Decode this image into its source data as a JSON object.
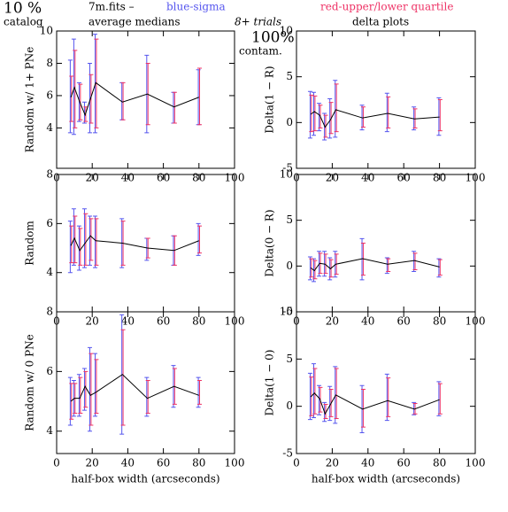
{
  "header": {
    "pct": "10 %",
    "catalog": "catalog",
    "file": "7m.fits  –",
    "sigma_legend": "blue-sigma",
    "sigma_color": "#5555ee",
    "quartile_legend": "red-upper/lower quartile",
    "quartile_color": "#ee3366",
    "medians": "average medians",
    "trials": "8+ trials",
    "contam_pct": "100%",
    "contam": "contam.",
    "delta": "delta plots"
  },
  "chart_data": [
    {
      "type": "line",
      "ylabel": "Random w/ 1+ PNe",
      "x": [
        8,
        10,
        13,
        16,
        19,
        22,
        37,
        51,
        66,
        80
      ],
      "values": [
        5.9,
        6.5,
        5.6,
        4.8,
        5.8,
        6.8,
        5.6,
        6.1,
        5.3,
        5.9
      ],
      "sigma": [
        [
          3.7,
          8.2
        ],
        [
          3.6,
          9.5
        ],
        [
          4.4,
          6.8
        ],
        [
          4.3,
          5.6
        ],
        [
          3.7,
          8.0
        ],
        [
          3.7,
          9.8
        ],
        [
          4.5,
          6.8
        ],
        [
          3.7,
          8.5
        ],
        [
          4.3,
          6.2
        ],
        [
          4.2,
          7.6
        ]
      ],
      "quartile": [
        [
          4.4,
          7.2
        ],
        [
          4.0,
          8.8
        ],
        [
          4.5,
          6.7
        ],
        [
          4.4,
          5.3
        ],
        [
          4.3,
          7.3
        ],
        [
          4.0,
          9.5
        ],
        [
          4.5,
          6.8
        ],
        [
          4.2,
          8.0
        ],
        [
          4.3,
          6.2
        ],
        [
          4.2,
          7.7
        ]
      ],
      "xlim": [
        0,
        100
      ],
      "xticks": [
        0,
        20,
        40,
        60,
        80,
        100
      ],
      "ylim": [
        1.5,
        10
      ],
      "yticks": [
        4,
        6,
        8,
        10
      ],
      "color": "#000000"
    },
    {
      "type": "line",
      "ylabel": "Delta(1 − R)",
      "x": [
        8,
        10,
        13,
        16,
        19,
        22,
        37,
        51,
        66,
        80
      ],
      "values": [
        0.9,
        1.2,
        0.8,
        -0.5,
        0.3,
        1.4,
        0.5,
        1.0,
        0.4,
        0.6
      ],
      "sigma": [
        [
          -1.7,
          3.4
        ],
        [
          -1.4,
          3.3
        ],
        [
          -0.9,
          2.1
        ],
        [
          -1.9,
          1.0
        ],
        [
          -1.7,
          2.6
        ],
        [
          -1.6,
          4.6
        ],
        [
          -0.8,
          1.9
        ],
        [
          -1.0,
          3.2
        ],
        [
          -0.8,
          1.7
        ],
        [
          -1.4,
          2.7
        ]
      ],
      "quartile": [
        [
          -1.0,
          3.0
        ],
        [
          -0.9,
          2.9
        ],
        [
          -0.6,
          1.9
        ],
        [
          -1.6,
          0.8
        ],
        [
          -1.2,
          2.2
        ],
        [
          -1.0,
          4.2
        ],
        [
          -0.5,
          1.7
        ],
        [
          -0.6,
          2.8
        ],
        [
          -0.6,
          1.5
        ],
        [
          -0.9,
          2.5
        ]
      ],
      "xlim": [
        0,
        100
      ],
      "xticks": [
        0,
        20,
        40,
        60,
        80,
        100
      ],
      "ylim": [
        -5,
        10
      ],
      "yticks": [
        -5,
        0,
        5,
        10
      ],
      "color": "#000000"
    },
    {
      "type": "line",
      "ylabel": "Random",
      "x": [
        8,
        10,
        13,
        16,
        19,
        22,
        37,
        51,
        66,
        80
      ],
      "values": [
        5.1,
        5.4,
        4.9,
        5.2,
        5.5,
        5.3,
        5.2,
        5.0,
        4.9,
        5.3
      ],
      "sigma": [
        [
          4.0,
          6.1
        ],
        [
          4.3,
          6.6
        ],
        [
          4.1,
          5.9
        ],
        [
          4.2,
          6.6
        ],
        [
          4.3,
          6.3
        ],
        [
          4.2,
          6.3
        ],
        [
          4.2,
          6.2
        ],
        [
          4.5,
          5.4
        ],
        [
          4.3,
          5.5
        ],
        [
          4.7,
          6.0
        ]
      ],
      "quartile": [
        [
          4.4,
          5.9
        ],
        [
          4.4,
          6.3
        ],
        [
          4.3,
          5.8
        ],
        [
          4.3,
          6.4
        ],
        [
          4.5,
          6.2
        ],
        [
          4.3,
          6.2
        ],
        [
          4.3,
          6.1
        ],
        [
          4.6,
          5.4
        ],
        [
          4.3,
          5.5
        ],
        [
          4.8,
          5.9
        ]
      ],
      "xlim": [
        0,
        100
      ],
      "xticks": [
        0,
        20,
        40,
        60,
        80,
        100
      ],
      "ylim": [
        2.4,
        8
      ],
      "yticks": [
        4,
        6,
        8
      ],
      "color": "#000000"
    },
    {
      "type": "line",
      "ylabel": "Delta(0 − R)",
      "x": [
        8,
        10,
        13,
        16,
        19,
        22,
        37,
        51,
        66,
        80
      ],
      "values": [
        -0.2,
        -0.5,
        0.3,
        0.2,
        -0.3,
        0.2,
        0.8,
        0.2,
        0.6,
        -0.1
      ],
      "sigma": [
        [
          -1.5,
          1.0
        ],
        [
          -1.7,
          0.8
        ],
        [
          -1.1,
          1.6
        ],
        [
          -1.1,
          1.6
        ],
        [
          -1.5,
          0.9
        ],
        [
          -1.2,
          1.6
        ],
        [
          -1.5,
          3.0
        ],
        [
          -0.8,
          0.9
        ],
        [
          -0.6,
          1.6
        ],
        [
          -1.2,
          0.8
        ]
      ],
      "quartile": [
        [
          -1.2,
          0.8
        ],
        [
          -1.4,
          0.6
        ],
        [
          -0.8,
          1.4
        ],
        [
          -0.8,
          1.3
        ],
        [
          -1.2,
          0.7
        ],
        [
          -0.9,
          1.3
        ],
        [
          -1.0,
          2.5
        ],
        [
          -0.6,
          0.8
        ],
        [
          -0.4,
          1.4
        ],
        [
          -1.0,
          0.7
        ]
      ],
      "xlim": [
        0,
        100
      ],
      "xticks": [
        0,
        20,
        40,
        60,
        80,
        100
      ],
      "ylim": [
        -5,
        10
      ],
      "yticks": [
        -5,
        0,
        5,
        10
      ],
      "color": "#000000"
    },
    {
      "type": "line",
      "ylabel": "Random w/ 0 PNe",
      "xlabel": "half-box width (arcseconds)",
      "x": [
        8,
        10,
        13,
        16,
        19,
        22,
        37,
        51,
        66,
        80
      ],
      "values": [
        5.0,
        5.1,
        5.1,
        5.5,
        5.2,
        5.3,
        5.9,
        5.1,
        5.5,
        5.2
      ],
      "sigma": [
        [
          4.2,
          5.8
        ],
        [
          4.5,
          5.7
        ],
        [
          4.5,
          5.9
        ],
        [
          4.7,
          6.1
        ],
        [
          4.0,
          6.8
        ],
        [
          4.5,
          6.6
        ],
        [
          3.9,
          7.9
        ],
        [
          4.5,
          5.8
        ],
        [
          4.8,
          6.2
        ],
        [
          4.8,
          5.8
        ]
      ],
      "quartile": [
        [
          4.4,
          5.6
        ],
        [
          4.6,
          5.6
        ],
        [
          4.6,
          5.8
        ],
        [
          4.8,
          6.0
        ],
        [
          4.2,
          6.6
        ],
        [
          4.6,
          6.4
        ],
        [
          4.2,
          7.4
        ],
        [
          4.6,
          5.7
        ],
        [
          4.9,
          6.1
        ],
        [
          4.9,
          5.7
        ]
      ],
      "xlim": [
        0,
        100
      ],
      "xticks": [
        0,
        20,
        40,
        60,
        80,
        100
      ],
      "ylim": [
        3.25,
        8
      ],
      "yticks": [
        4,
        6,
        8
      ],
      "color": "#000000"
    },
    {
      "type": "line",
      "ylabel": "Delta(1 − 0)",
      "xlabel": "half-box width (arcseconds)",
      "x": [
        8,
        10,
        13,
        16,
        19,
        22,
        37,
        51,
        66,
        80
      ],
      "values": [
        1.0,
        1.4,
        0.8,
        -0.8,
        0.2,
        1.2,
        -0.3,
        0.6,
        -0.3,
        0.7
      ],
      "sigma": [
        [
          -1.4,
          3.5
        ],
        [
          -1.2,
          4.5
        ],
        [
          -0.9,
          2.2
        ],
        [
          -1.6,
          0.4
        ],
        [
          -1.5,
          2.1
        ],
        [
          -1.8,
          4.2
        ],
        [
          -2.8,
          2.2
        ],
        [
          -1.5,
          3.4
        ],
        [
          -0.9,
          0.4
        ],
        [
          -1.0,
          2.6
        ]
      ],
      "quartile": [
        [
          -1.0,
          3.1
        ],
        [
          -0.8,
          4.0
        ],
        [
          -0.6,
          2.0
        ],
        [
          -1.3,
          0.2
        ],
        [
          -1.1,
          1.8
        ],
        [
          -1.3,
          4.0
        ],
        [
          -2.2,
          1.8
        ],
        [
          -1.1,
          3.0
        ],
        [
          -0.8,
          0.3
        ],
        [
          -0.8,
          2.4
        ]
      ],
      "xlim": [
        0,
        100
      ],
      "xticks": [
        0,
        20,
        40,
        60,
        80,
        100
      ],
      "ylim": [
        -5,
        10
      ],
      "yticks": [
        -5,
        0,
        5,
        10
      ],
      "color": "#000000"
    }
  ]
}
